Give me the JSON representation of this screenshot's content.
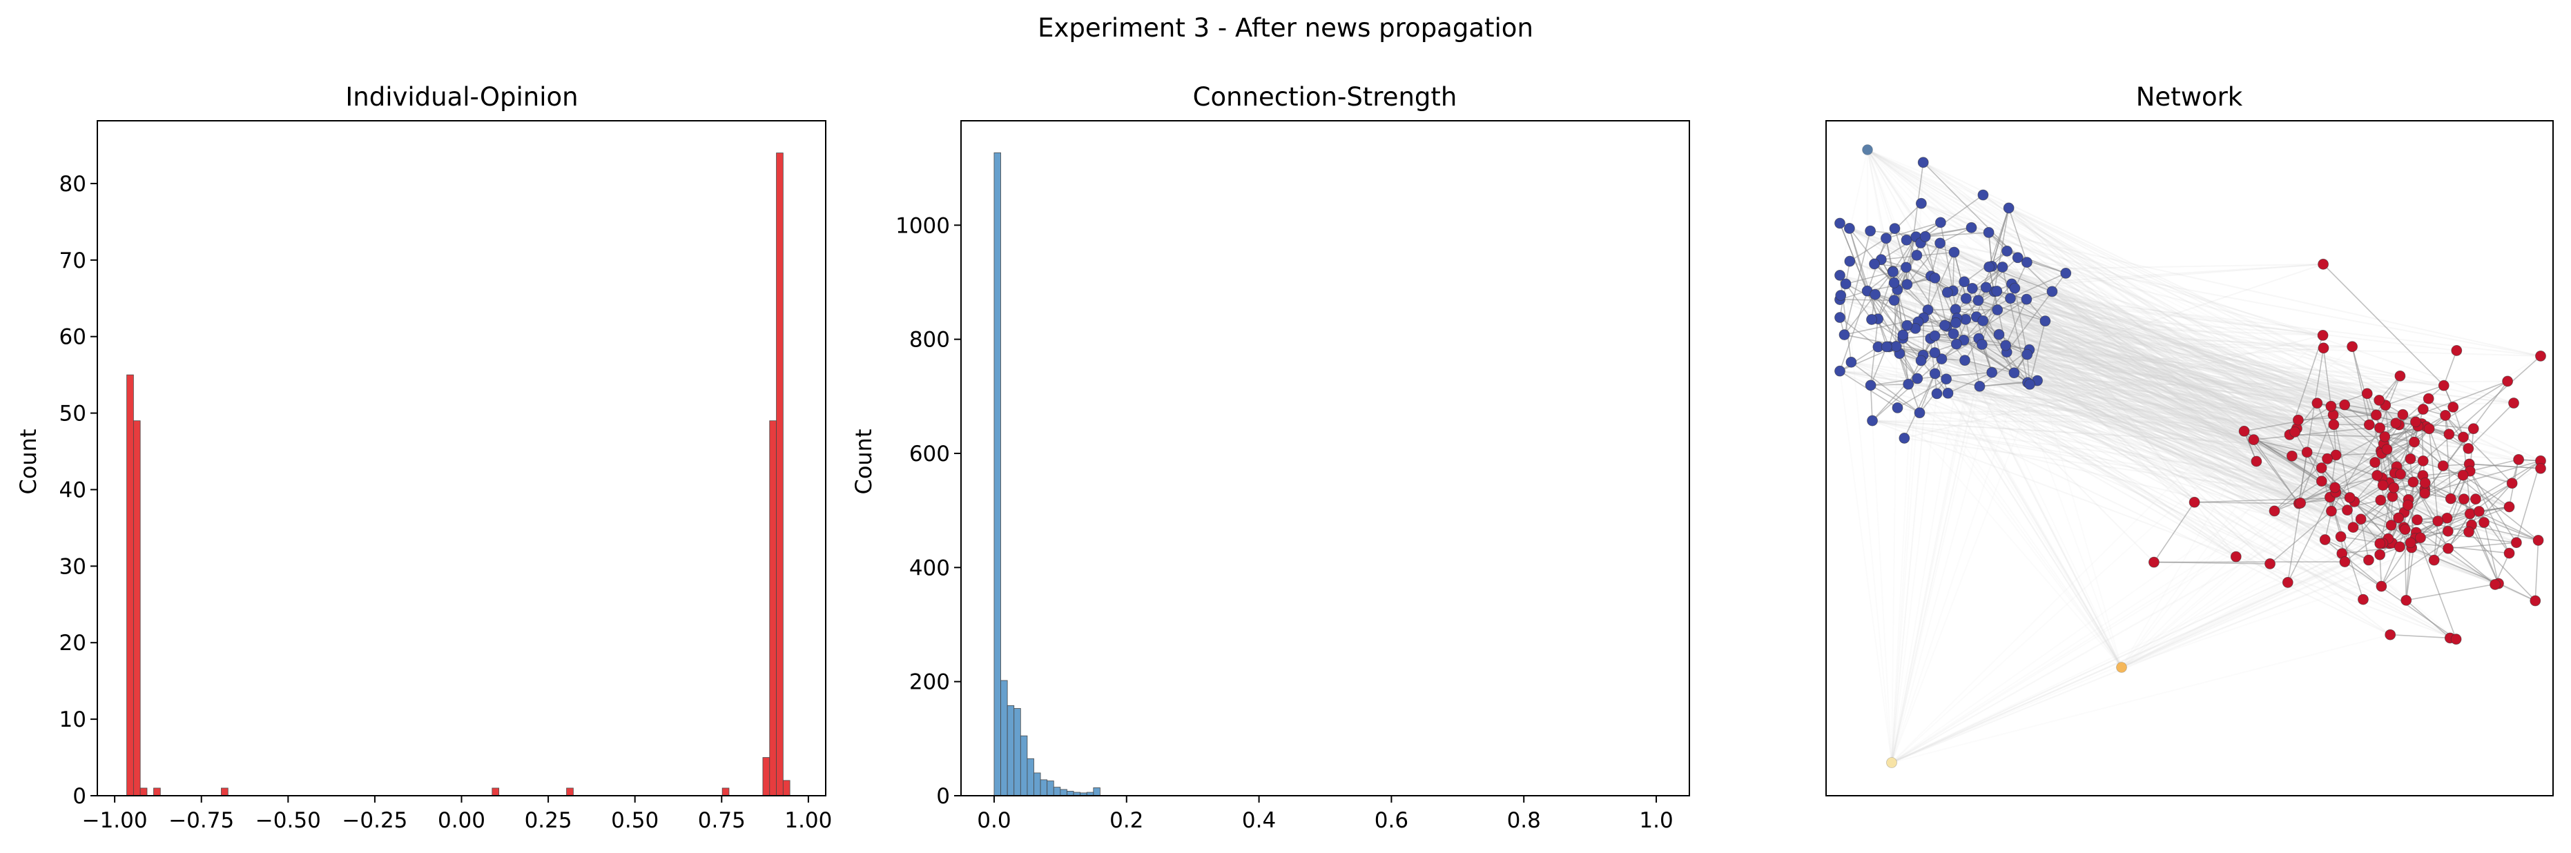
{
  "suptitle": "Experiment 3 - After news propagation",
  "chart_data": [
    {
      "type": "histogram",
      "title": "Individual-Opinion",
      "xlabel": "",
      "ylabel": "Count",
      "xlim": [
        -1.05,
        1.05
      ],
      "ylim": [
        0,
        88.2
      ],
      "xticks": [
        -1.0,
        -0.75,
        -0.5,
        -0.25,
        0.0,
        0.25,
        0.5,
        0.75,
        1.0
      ],
      "xtick_labels": [
        "−1.00",
        "−0.75",
        "−0.50",
        "−0.25",
        "0.00",
        "0.25",
        "0.50",
        "0.75",
        "1.00"
      ],
      "yticks": [
        0,
        10,
        20,
        30,
        40,
        50,
        60,
        70,
        80
      ],
      "ytick_labels": [
        "0",
        "10",
        "20",
        "30",
        "40",
        "50",
        "60",
        "70",
        "80"
      ],
      "bin_width": 0.0195,
      "color": "#e31a1c",
      "bars": [
        {
          "x": -0.9555,
          "count": 55
        },
        {
          "x": -0.936,
          "count": 49
        },
        {
          "x": -0.9165,
          "count": 1
        },
        {
          "x": -0.878,
          "count": 1
        },
        {
          "x": -0.683,
          "count": 1
        },
        {
          "x": 0.098,
          "count": 1
        },
        {
          "x": 0.3125,
          "count": 1
        },
        {
          "x": 0.7615,
          "count": 1
        },
        {
          "x": 0.8785,
          "count": 5
        },
        {
          "x": 0.898,
          "count": 49
        },
        {
          "x": 0.9175,
          "count": 84
        },
        {
          "x": 0.937,
          "count": 2
        }
      ]
    },
    {
      "type": "histogram",
      "title": "Connection-Strength",
      "xlabel": "",
      "ylabel": "Count",
      "xlim": [
        -0.05,
        1.05
      ],
      "ylim": [
        0,
        1183
      ],
      "xticks": [
        0.0,
        0.2,
        0.4,
        0.6,
        0.8,
        1.0
      ],
      "xtick_labels": [
        "0.0",
        "0.2",
        "0.4",
        "0.6",
        "0.8",
        "1.0"
      ],
      "yticks": [
        0,
        200,
        400,
        600,
        800,
        1000
      ],
      "ytick_labels": [
        "0",
        "200",
        "400",
        "600",
        "800",
        "1000"
      ],
      "bin_width": 0.01,
      "color": "#4c8fc4",
      "bars": [
        {
          "x": 0.005,
          "count": 1127
        },
        {
          "x": 0.015,
          "count": 202
        },
        {
          "x": 0.025,
          "count": 158
        },
        {
          "x": 0.035,
          "count": 153
        },
        {
          "x": 0.045,
          "count": 105
        },
        {
          "x": 0.055,
          "count": 65
        },
        {
          "x": 0.065,
          "count": 40
        },
        {
          "x": 0.075,
          "count": 28
        },
        {
          "x": 0.085,
          "count": 26
        },
        {
          "x": 0.095,
          "count": 15
        },
        {
          "x": 0.105,
          "count": 11
        },
        {
          "x": 0.115,
          "count": 8
        },
        {
          "x": 0.125,
          "count": 6
        },
        {
          "x": 0.135,
          "count": 5
        },
        {
          "x": 0.145,
          "count": 6
        },
        {
          "x": 0.155,
          "count": 14
        }
      ]
    },
    {
      "type": "network",
      "title": "Network",
      "clusters": [
        {
          "color": "#3b4ba5",
          "count": 120
        },
        {
          "color": "#c4122a",
          "count": 150
        }
      ],
      "outliers": [
        {
          "color": "#5a7fa8"
        },
        {
          "color": "#f5b75a"
        },
        {
          "color": "#f7e3a6"
        }
      ]
    }
  ]
}
